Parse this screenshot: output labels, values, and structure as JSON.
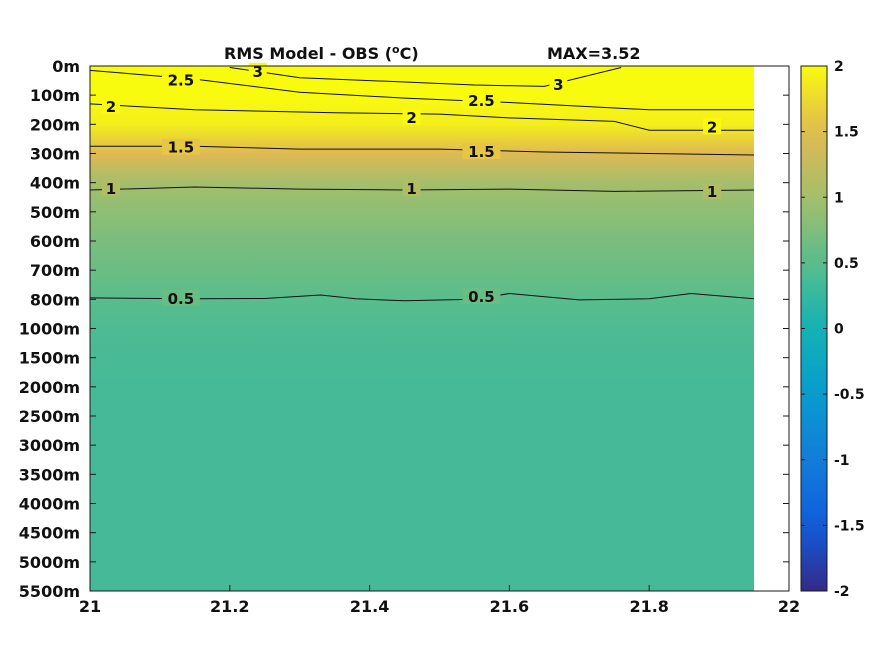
{
  "chart_data": {
    "type": "heatmap",
    "title": "RMS Model - OBS (",
    "title_sup": "o",
    "title_tail": "C)",
    "max_label": "MAX=3.52",
    "x_ticks": [
      "21",
      "21.2",
      "21.4",
      "21.6",
      "21.8",
      "22"
    ],
    "y_ticks": [
      "0m",
      "100m",
      "200m",
      "300m",
      "400m",
      "500m",
      "600m",
      "700m",
      "800m",
      "1000m",
      "1500m",
      "2000m",
      "2500m",
      "3000m",
      "3500m",
      "4000m",
      "4500m",
      "5000m",
      "5500m"
    ],
    "xlim": [
      21,
      22
    ],
    "data_xmax": 21.95,
    "colorbar": {
      "min": -2,
      "max": 2,
      "ticks": [
        "2",
        "1.5",
        "1",
        "0.5",
        "0",
        "-0.5",
        "-1",
        "-1.5",
        "-2"
      ]
    },
    "profile": [
      3.35,
      2.35,
      1.9,
      1.48,
      1.0,
      0.85,
      0.72,
      0.62,
      0.5,
      0.42,
      0.38,
      0.36,
      0.35,
      0.35,
      0.35,
      0.35,
      0.35,
      0.35,
      0.35
    ],
    "contours": [
      {
        "level": 0.5,
        "label": "0.5",
        "points": [
          [
            21,
            7.95
          ],
          [
            21.15,
            7.98
          ],
          [
            21.25,
            7.97
          ],
          [
            21.33,
            7.85
          ],
          [
            21.38,
            7.98
          ],
          [
            21.45,
            8.05
          ],
          [
            21.55,
            8.0
          ],
          [
            21.6,
            7.8
          ],
          [
            21.7,
            8.02
          ],
          [
            21.8,
            7.98
          ],
          [
            21.86,
            7.8
          ],
          [
            21.95,
            7.98
          ]
        ],
        "labels": [
          [
            21.13,
            7.98
          ],
          [
            21.56,
            7.92
          ]
        ]
      },
      {
        "level": 1,
        "label": "1",
        "points": [
          [
            21,
            4.25
          ],
          [
            21.15,
            4.15
          ],
          [
            21.3,
            4.22
          ],
          [
            21.45,
            4.25
          ],
          [
            21.6,
            4.22
          ],
          [
            21.75,
            4.3
          ],
          [
            21.95,
            4.25
          ]
        ],
        "labels": [
          [
            21.03,
            4.22
          ],
          [
            21.46,
            4.22
          ],
          [
            21.89,
            4.32
          ]
        ]
      },
      {
        "level": 1.5,
        "label": "1.5",
        "points": [
          [
            21,
            2.75
          ],
          [
            21.15,
            2.75
          ],
          [
            21.3,
            2.85
          ],
          [
            21.5,
            2.85
          ],
          [
            21.65,
            2.95
          ],
          [
            21.8,
            3.0
          ],
          [
            21.95,
            3.05
          ]
        ],
        "labels": [
          [
            21.13,
            2.8
          ],
          [
            21.56,
            2.95
          ]
        ]
      },
      {
        "level": 2,
        "label": "2",
        "points": [
          [
            21,
            1.3
          ],
          [
            21.15,
            1.5
          ],
          [
            21.35,
            1.6
          ],
          [
            21.5,
            1.65
          ],
          [
            21.6,
            1.78
          ],
          [
            21.75,
            1.9
          ],
          [
            21.8,
            2.2
          ],
          [
            21.95,
            2.2
          ]
        ],
        "labels": [
          [
            21.03,
            1.4
          ],
          [
            21.46,
            1.78
          ],
          [
            21.89,
            2.1
          ]
        ]
      },
      {
        "level": 2.5,
        "label": "2.5",
        "points": [
          [
            21,
            0.15
          ],
          [
            21.15,
            0.45
          ],
          [
            21.3,
            0.9
          ],
          [
            21.45,
            1.1
          ],
          [
            21.6,
            1.25
          ],
          [
            21.8,
            1.5
          ],
          [
            21.95,
            1.5
          ]
        ],
        "labels": [
          [
            21.13,
            0.5
          ],
          [
            21.56,
            1.2
          ]
        ]
      },
      {
        "level": 3,
        "label": "3",
        "points": [
          [
            21.2,
            0.05
          ],
          [
            21.3,
            0.4
          ],
          [
            21.45,
            0.55
          ],
          [
            21.55,
            0.65
          ],
          [
            21.65,
            0.7
          ],
          [
            21.76,
            0.05
          ]
        ],
        "labels": [
          [
            21.24,
            0.2
          ],
          [
            21.67,
            0.65
          ]
        ]
      }
    ]
  }
}
